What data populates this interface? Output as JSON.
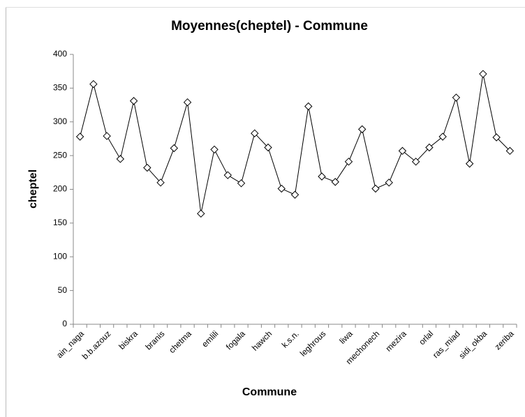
{
  "chart_data": {
    "type": "line",
    "title": "Moyennes(cheptel) - Commune",
    "x_label": "Commune",
    "y_label": "cheptel",
    "categories": [
      "ain_naga",
      null,
      "b.b.azouz",
      null,
      "biskra",
      null,
      "branis",
      null,
      "chetma",
      null,
      "emlili",
      null,
      "fogala",
      null,
      "hawch",
      null,
      "k.s.n.",
      null,
      "leghrous",
      null,
      "liwa",
      null,
      "mechonech",
      null,
      "mezira",
      null,
      "orlal",
      null,
      "ras_miad",
      null,
      "sidi_okba",
      null,
      "zeriba"
    ],
    "series": [
      {
        "name": "cheptel",
        "color": "#000000",
        "values": [
          278,
          356,
          279,
          245,
          331,
          232,
          210,
          261,
          329,
          164,
          259,
          221,
          209,
          283,
          262,
          201,
          192,
          323,
          219,
          211,
          241,
          289,
          201,
          210,
          257,
          241,
          262,
          278,
          336,
          238,
          371,
          277,
          257
        ]
      }
    ],
    "ylim": [
      0,
      400
    ],
    "yticks": [
      0,
      50,
      100,
      150,
      200,
      250,
      300,
      350,
      400
    ],
    "grid": false
  }
}
